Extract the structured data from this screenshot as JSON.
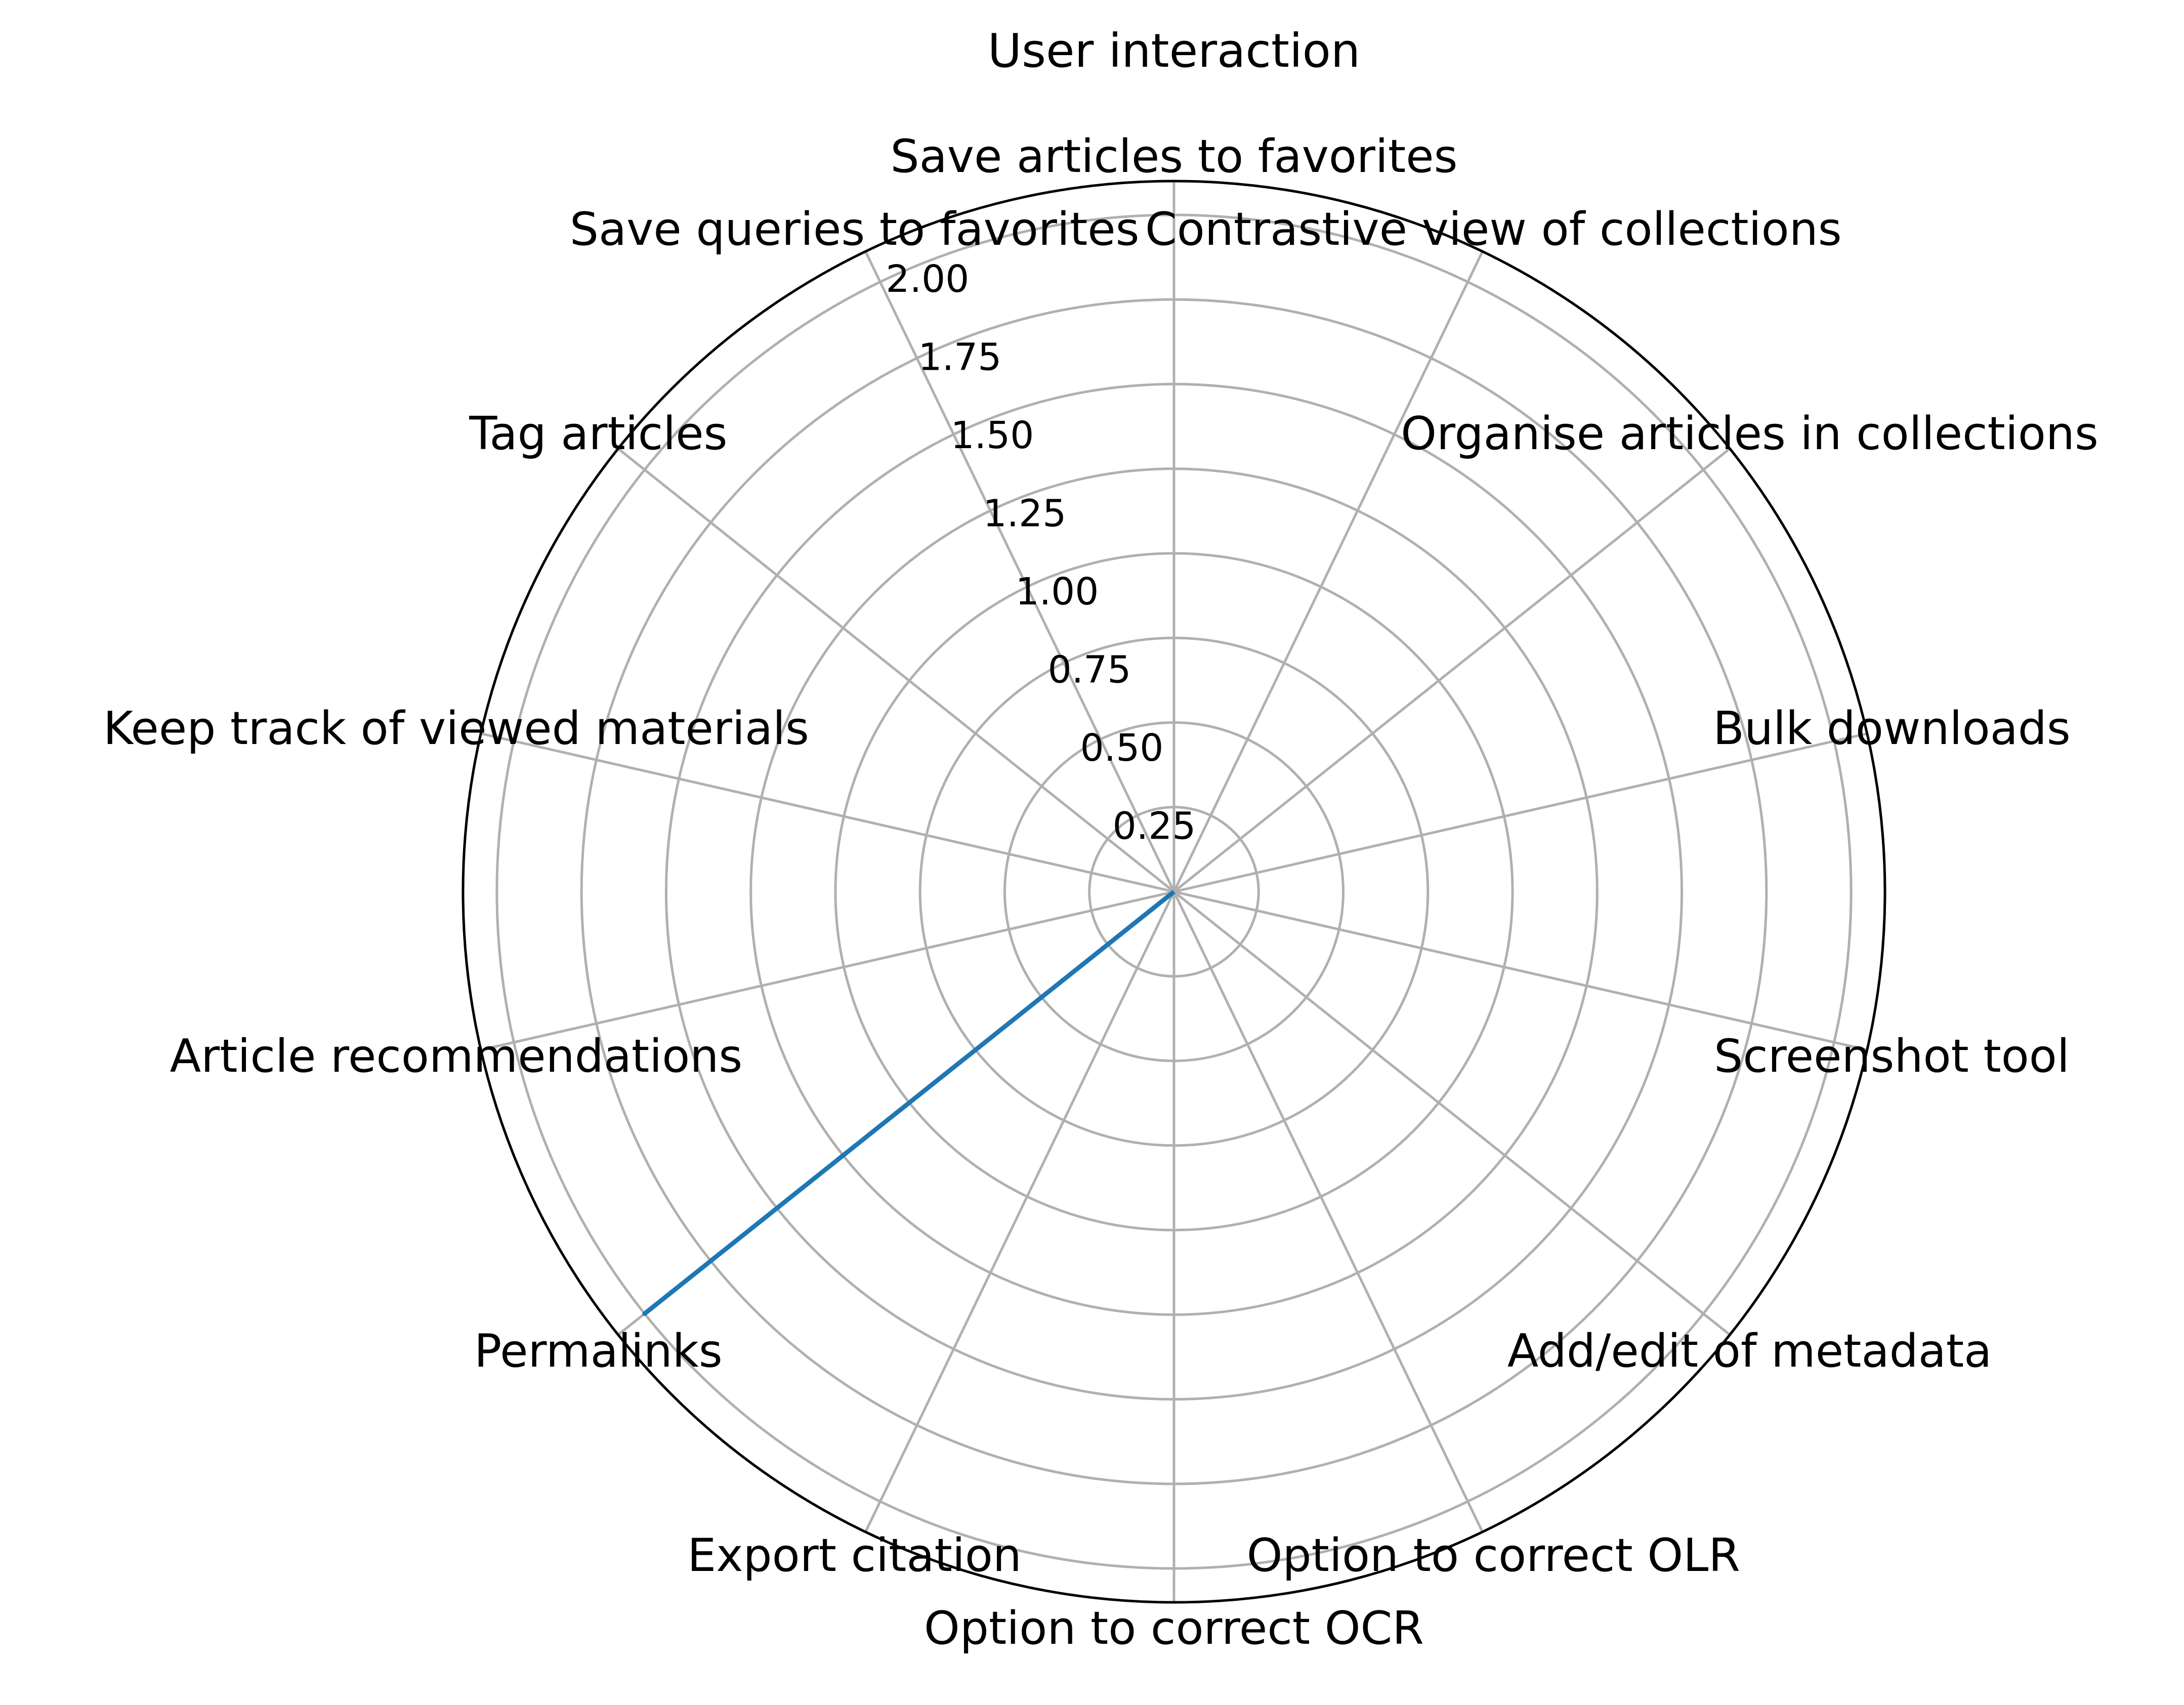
{
  "chart_data": {
    "type": "radar",
    "title": "User interaction",
    "categories": [
      "Save articles to favorites",
      "Contrastive view of collections",
      "Organise articles in collections",
      "Bulk downloads",
      "Screenshot tool",
      "Add/edit of metadata",
      "Option to correct OLR",
      "Option to correct OCR",
      "Export citation",
      "Permalinks",
      "Article recommendations",
      "Keep track of viewed materials",
      "Tag articles",
      "Save queries to favorites"
    ],
    "series": [
      {
        "values": [
          0,
          0,
          0,
          0,
          0,
          0,
          0,
          0,
          0,
          2,
          0,
          0,
          0,
          0
        ],
        "color": "#1f77b4"
      }
    ],
    "rlim": [
      0,
      2.1
    ],
    "rticks": [
      0.25,
      0.5,
      0.75,
      1.0,
      1.25,
      1.5,
      1.75,
      2.0
    ],
    "rtick_labels": [
      "0.25",
      "0.50",
      "0.75",
      "1.00",
      "1.25",
      "1.50",
      "1.75",
      "2.00"
    ],
    "grid": true,
    "grid_color": "#b0b0b0",
    "spine_color": "#000000"
  }
}
